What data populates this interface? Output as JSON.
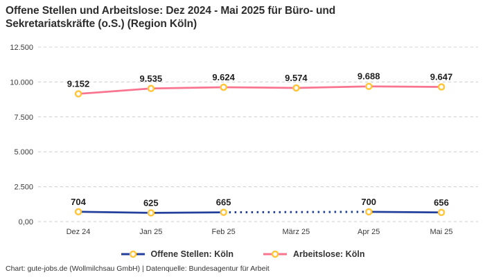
{
  "header": {
    "title_line1": "Offene Stellen und Arbeitslose: Dez 2024 - Mai 2025 für Büro- und",
    "title_line2": "Sekretariatskräfte (o.S.) (Region Köln)"
  },
  "legend": [
    {
      "label": "Offene Stellen: Köln",
      "color": "#22409B"
    },
    {
      "label": "Arbeitslose: Köln",
      "color": "#F9758F"
    }
  ],
  "footer": {
    "credit": "Chart: gute-jobs.de (Wollmilchsau GmbH) | Datenquelle: Bundesagentur für Arbeit"
  },
  "colors": {
    "offene_stellen_line": "#22409B",
    "arbeitslose_line": "#F9758F",
    "marker_ring": "#FFC53D",
    "marker_fill": "#FFFFFF",
    "gridline": "#CCCCCC",
    "text_dark": "#2D2D2D"
  },
  "chart_data": {
    "type": "line",
    "title": "Offene Stellen und Arbeitslose: Dez 2024 - Mai 2025 für Büro- und Sekretariatskräfte (o.S.) (Region Köln)",
    "categories": [
      "Dez 24",
      "Jan 25",
      "Feb 25",
      "März 25",
      "Apr 25",
      "Mai 25"
    ],
    "series": [
      {
        "name": "Offene Stellen: Köln",
        "color": "#22409B",
        "values": [
          704,
          625,
          665,
          null,
          700,
          656
        ],
        "labels": [
          "704",
          "625",
          "665",
          null,
          "700",
          "656"
        ],
        "gap_style": "dotted-interpolation"
      },
      {
        "name": "Arbeitslose: Köln",
        "color": "#F9758F",
        "values": [
          9152,
          9535,
          9624,
          9574,
          9688,
          9647
        ],
        "labels": [
          "9.152",
          "9.535",
          "9.624",
          "9.574",
          "9.688",
          "9.647"
        ]
      }
    ],
    "ylim": [
      0,
      12500
    ],
    "y_ticks": [
      {
        "value": 0,
        "label": "0,00"
      },
      {
        "value": 2500,
        "label": "2.500"
      },
      {
        "value": 5000,
        "label": "5.000"
      },
      {
        "value": 7500,
        "label": "7.500"
      },
      {
        "value": 10000,
        "label": "10.000"
      },
      {
        "value": 12500,
        "label": "12.500"
      }
    ],
    "grid": "dashed-horizontal",
    "legend_position": "bottom",
    "marker": {
      "shape": "circle",
      "stroke": "#FFC53D",
      "fill": "#FFFFFF"
    }
  }
}
